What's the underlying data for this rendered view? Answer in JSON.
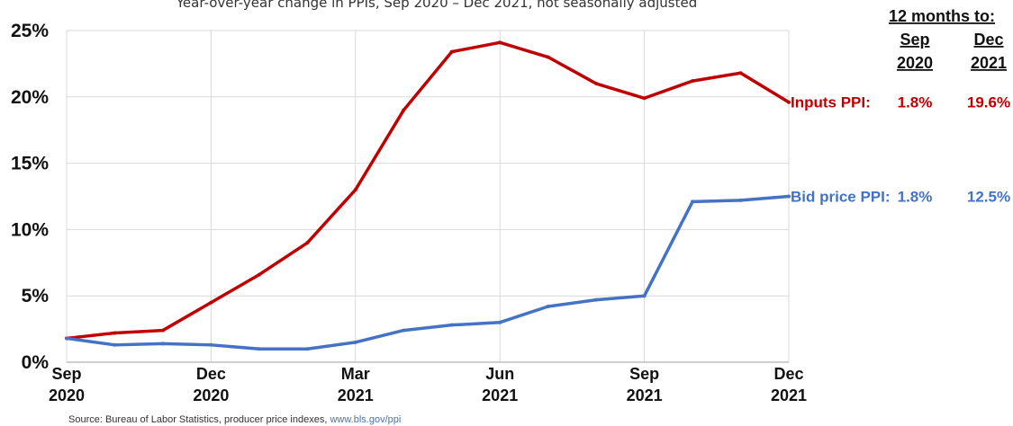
{
  "chart_data": {
    "type": "line",
    "subtitle": "Year-over-year change in PPIs, Sep 2020 – Dec 2021, not seasonally adjusted",
    "source_label": "Source: Bureau of Labor Statistics, producer price indexes,",
    "source_link": "www.bls.gov/ppi",
    "x": [
      "Sep 2020",
      "Oct 2020",
      "Nov 2020",
      "Dec 2020",
      "Jan 2021",
      "Feb 2021",
      "Mar 2021",
      "Apr 2021",
      "May 2021",
      "Jun 2021",
      "Jul 2021",
      "Aug 2021",
      "Sep 2021",
      "Oct 2021",
      "Nov 2021",
      "Dec 2021"
    ],
    "xticks": [
      {
        "index": 0,
        "month": "Sep",
        "year": "2020"
      },
      {
        "index": 3,
        "month": "Dec",
        "year": "2020"
      },
      {
        "index": 6,
        "month": "Mar",
        "year": "2021"
      },
      {
        "index": 9,
        "month": "Jun",
        "year": "2021"
      },
      {
        "index": 12,
        "month": "Sep",
        "year": "2021"
      },
      {
        "index": 15,
        "month": "Dec",
        "year": "2021"
      }
    ],
    "yticks": [
      "0%",
      "5%",
      "10%",
      "15%",
      "20%",
      "25%"
    ],
    "ylim": [
      0,
      25
    ],
    "grid": true,
    "series": [
      {
        "name": "Inputs PPI:",
        "color": "#C00000",
        "values": [
          1.8,
          2.2,
          2.4,
          4.5,
          6.6,
          9.0,
          13.0,
          19.0,
          23.4,
          24.1,
          23.0,
          21.0,
          19.9,
          21.2,
          21.8,
          19.6
        ],
        "sep2020": "1.8%",
        "dec2021": "19.6%"
      },
      {
        "name": "Bid price PPI:",
        "color": "#4472C4",
        "values": [
          1.8,
          1.3,
          1.4,
          1.3,
          1.0,
          1.0,
          1.5,
          2.4,
          2.8,
          3.0,
          4.2,
          4.7,
          5.0,
          12.1,
          12.2,
          12.5
        ],
        "sep2020": "1.8%",
        "dec2021": "12.5%"
      }
    ],
    "table_header": {
      "title": "12 months to:",
      "col1_month": "Sep",
      "col1_year": "2020",
      "col2_month": "Dec",
      "col2_year": "2021"
    },
    "link_color": "#4472C4"
  }
}
